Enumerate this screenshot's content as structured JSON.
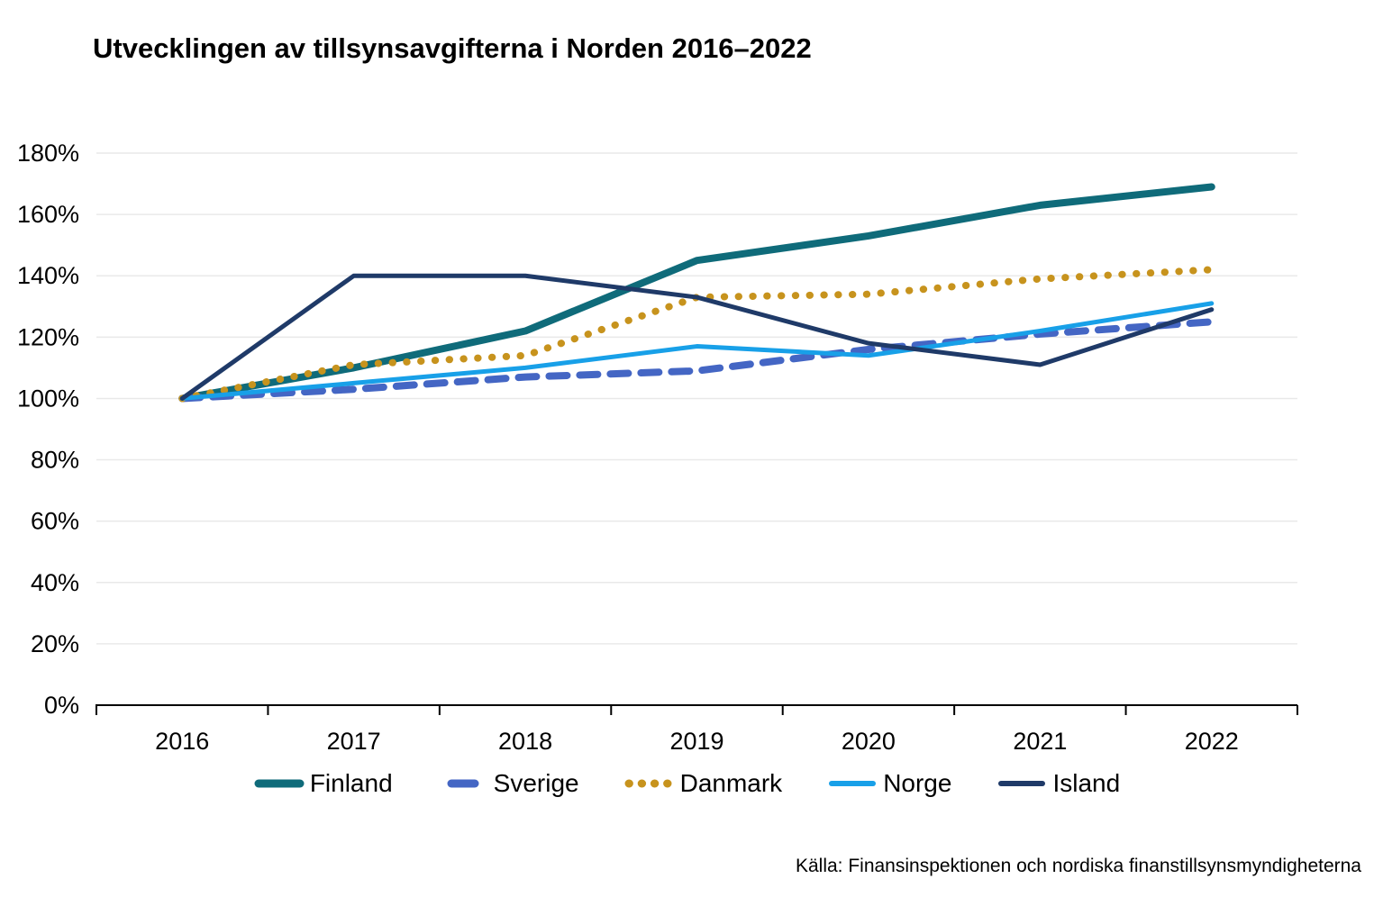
{
  "title": "Utvecklingen av tillsynsavgifterna i Norden 2016–2022",
  "source": "Källa: Finansinspektionen och nordiska finanstillsynsmyndigheterna",
  "chart_data": {
    "type": "line",
    "title": "Utvecklingen av tillsynsavgifterna i Norden 2016–2022",
    "x": [
      "2016",
      "2017",
      "2018",
      "2019",
      "2020",
      "2021",
      "2022"
    ],
    "series": [
      {
        "name": "Finland",
        "color": "#0f6b7a",
        "style": "solid-thick",
        "values": [
          100,
          110,
          122,
          145,
          153,
          163,
          169
        ]
      },
      {
        "name": "Sverige",
        "color": "#4466c4",
        "style": "dashed",
        "values": [
          100,
          103,
          107,
          109,
          116,
          121,
          125
        ]
      },
      {
        "name": "Danmark",
        "color": "#c7931d",
        "style": "dotted",
        "values": [
          100,
          111,
          114,
          133,
          134,
          139,
          142
        ]
      },
      {
        "name": "Norge",
        "color": "#18a0e8",
        "style": "solid",
        "values": [
          100,
          105,
          110,
          117,
          114,
          122,
          131
        ]
      },
      {
        "name": "Island",
        "color": "#1f3a68",
        "style": "solid",
        "values": [
          100,
          140,
          140,
          133,
          118,
          111,
          129
        ]
      }
    ],
    "xlabel": "",
    "ylabel": "",
    "ylim": [
      0,
      180
    ],
    "ytick_step": 20,
    "ytick_suffix": "%",
    "grid": "horizontal",
    "gridline_color": "#e9e9e9",
    "axis_color": "#000000",
    "legend_position": "bottom"
  }
}
